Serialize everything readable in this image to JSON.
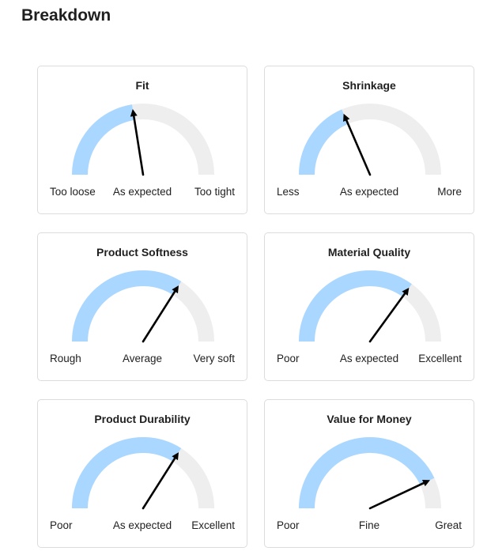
{
  "page": {
    "title": "Breakdown"
  },
  "colors": {
    "track": "#eeeeee",
    "fill": "#aad7ff",
    "needle": "#000000"
  },
  "cards": [
    {
      "id": "fit",
      "title": "Fit",
      "low": "Too loose",
      "mid": "As expected",
      "high": "Too tight",
      "value": 0.45
    },
    {
      "id": "shrinkage",
      "title": "Shrinkage",
      "low": "Less",
      "mid": "As expected",
      "high": "More",
      "value": 0.37
    },
    {
      "id": "product-softness",
      "title": "Product Softness",
      "low": "Rough",
      "mid": "Average",
      "high": "Very soft",
      "value": 0.68
    },
    {
      "id": "material-quality",
      "title": "Material Quality",
      "low": "Poor",
      "mid": "As expected",
      "high": "Excellent",
      "value": 0.7
    },
    {
      "id": "product-durability",
      "title": "Product Durability",
      "low": "Poor",
      "mid": "As expected",
      "high": "Excellent",
      "value": 0.68
    },
    {
      "id": "value-for-money",
      "title": "Value for Money",
      "low": "Poor",
      "mid": "Fine",
      "high": "Great",
      "value": 0.86
    }
  ]
}
